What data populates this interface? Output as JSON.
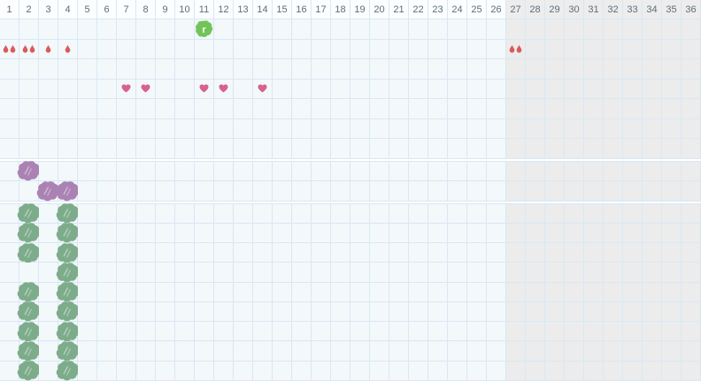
{
  "app": {
    "name": "cycle tracker grid"
  },
  "colors": {
    "droplet": "#d95b5b",
    "heart": "#d7628d",
    "splat": "#72c458",
    "splat_letter": "#ffffff",
    "purple_blob": "#ab82b4",
    "green_blob": "#7dac8b",
    "scribble_highlight": "#ffffff"
  },
  "grid": {
    "total_columns": 36,
    "inactive_from_column": 27,
    "day_numbers": [
      "1",
      "2",
      "3",
      "4",
      "5",
      "6",
      "7",
      "8",
      "9",
      "10",
      "11",
      "12",
      "13",
      "14",
      "15",
      "16",
      "17",
      "18",
      "19",
      "20",
      "21",
      "22",
      "23",
      "24",
      "25",
      "26",
      "27",
      "28",
      "29",
      "30",
      "31",
      "32",
      "33",
      "34",
      "35",
      "36"
    ]
  },
  "icons": {
    "record_splat": {
      "label": "r"
    }
  },
  "sections": [
    {
      "id": "events",
      "has_header": true,
      "rows": [
        {
          "marks": [
            {
              "col": 11,
              "type": "record-splat"
            }
          ]
        },
        {
          "marks": [
            {
              "col": 1,
              "type": "droplet-pair"
            },
            {
              "col": 2,
              "type": "droplet-pair"
            },
            {
              "col": 3,
              "type": "droplet-single"
            },
            {
              "col": 4,
              "type": "droplet-single"
            },
            {
              "col": 27,
              "type": "droplet-pair"
            }
          ]
        },
        {
          "marks": []
        },
        {
          "marks": [
            {
              "col": 7,
              "type": "heart"
            },
            {
              "col": 8,
              "type": "heart"
            },
            {
              "col": 11,
              "type": "heart"
            },
            {
              "col": 12,
              "type": "heart"
            },
            {
              "col": 14,
              "type": "heart"
            }
          ]
        },
        {
          "marks": []
        },
        {
          "marks": []
        },
        {
          "marks": []
        }
      ]
    },
    {
      "id": "purple-marks",
      "has_header": false,
      "rows": [
        {
          "marks": [
            {
              "col": 2,
              "type": "purple-blob"
            }
          ]
        },
        {
          "marks": [
            {
              "col": 3,
              "type": "purple-blob"
            },
            {
              "col": 4,
              "type": "purple-blob"
            }
          ]
        }
      ]
    },
    {
      "id": "green-marks",
      "has_header": false,
      "rows": [
        {
          "marks": [
            {
              "col": 2,
              "type": "green-blob"
            },
            {
              "col": 4,
              "type": "green-blob"
            }
          ]
        },
        {
          "marks": [
            {
              "col": 2,
              "type": "green-blob"
            },
            {
              "col": 4,
              "type": "green-blob"
            }
          ]
        },
        {
          "marks": [
            {
              "col": 2,
              "type": "green-blob"
            },
            {
              "col": 4,
              "type": "green-blob"
            }
          ]
        },
        {
          "marks": [
            {
              "col": 4,
              "type": "green-blob"
            }
          ]
        },
        {
          "marks": [
            {
              "col": 2,
              "type": "green-blob"
            },
            {
              "col": 4,
              "type": "green-blob"
            }
          ]
        },
        {
          "marks": [
            {
              "col": 2,
              "type": "green-blob"
            },
            {
              "col": 4,
              "type": "green-blob"
            }
          ]
        },
        {
          "marks": [
            {
              "col": 2,
              "type": "green-blob"
            },
            {
              "col": 4,
              "type": "green-blob"
            }
          ]
        },
        {
          "marks": [
            {
              "col": 2,
              "type": "green-blob"
            },
            {
              "col": 4,
              "type": "green-blob"
            }
          ]
        },
        {
          "marks": [
            {
              "col": 2,
              "type": "green-blob"
            },
            {
              "col": 4,
              "type": "green-blob"
            }
          ]
        }
      ]
    }
  ]
}
